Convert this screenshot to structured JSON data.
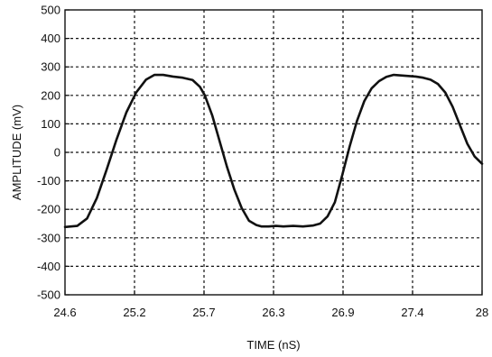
{
  "chart_data": {
    "type": "line",
    "xlabel": "TIME (nS)",
    "ylabel": "AMPLITUDE (mV)",
    "xlim": [
      24.6,
      28.0
    ],
    "ylim": [
      -500,
      500
    ],
    "x_tick_labels": [
      "24.6",
      "25.2",
      "25.7",
      "26.3",
      "26.9",
      "27.4",
      "28"
    ],
    "y_ticks": [
      500,
      400,
      300,
      200,
      100,
      0,
      -100,
      -200,
      -300,
      -400,
      -500
    ],
    "y_tick_labels": [
      "500",
      "400",
      "300",
      "200",
      "100",
      "0",
      "-100",
      "-200",
      "-300",
      "-400",
      "-500"
    ],
    "grid": true,
    "series": [
      {
        "color": "#111111",
        "x": [
          24.6,
          24.7,
          24.78,
          24.86,
          24.94,
          25.02,
          25.1,
          25.18,
          25.26,
          25.33,
          25.4,
          25.48,
          25.56,
          25.64,
          25.7,
          25.74,
          25.8,
          25.86,
          25.92,
          25.98,
          26.04,
          26.1,
          26.16,
          26.2,
          26.26,
          26.32,
          26.38,
          26.46,
          26.54,
          26.62,
          26.68,
          26.74,
          26.8,
          26.86,
          26.92,
          26.98,
          27.04,
          27.1,
          27.16,
          27.22,
          27.28,
          27.34,
          27.4,
          27.46,
          27.52,
          27.58,
          27.64,
          27.7,
          27.76,
          27.82,
          27.88,
          27.94,
          28.0
        ],
        "values": [
          -262,
          -258,
          -232,
          -160,
          -60,
          45,
          140,
          210,
          255,
          272,
          272,
          266,
          262,
          254,
          230,
          200,
          130,
          40,
          -50,
          -130,
          -195,
          -240,
          -255,
          -260,
          -260,
          -258,
          -260,
          -258,
          -260,
          -257,
          -250,
          -225,
          -175,
          -80,
          20,
          110,
          180,
          225,
          250,
          265,
          272,
          270,
          268,
          266,
          262,
          255,
          240,
          210,
          160,
          95,
          30,
          -15,
          -40
        ]
      }
    ]
  }
}
